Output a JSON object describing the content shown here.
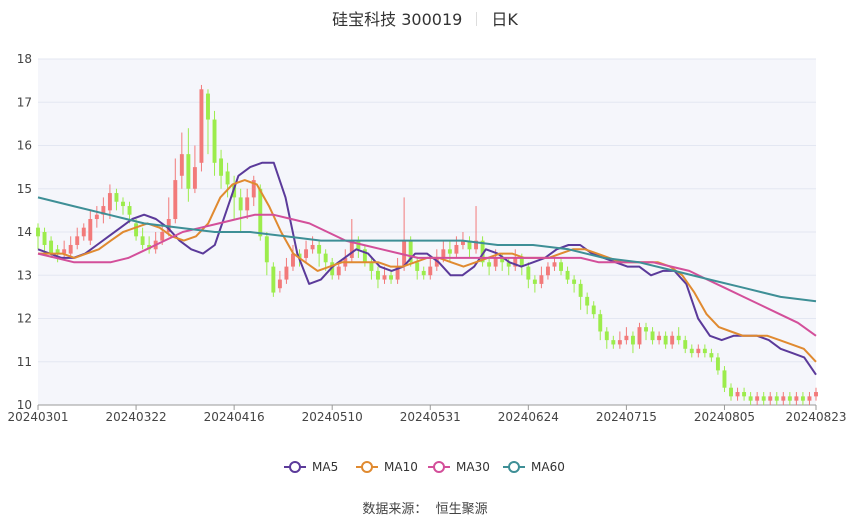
{
  "header": {
    "title": "硅宝科技 300019",
    "period": "日K"
  },
  "footer": {
    "source_label": "数据来源：",
    "source_name": "恒生聚源"
  },
  "colors": {
    "up": "#f27a7a",
    "down": "#9cec4c",
    "ma5": "#5b3a9a",
    "ma10": "#e08a30",
    "ma30": "#d34f9a",
    "ma60": "#3e8f96",
    "grid": "#e3e7f2",
    "plot_bg": "#f5f6fb"
  },
  "chart_data": {
    "type": "candlestick",
    "title": "硅宝科技 300019",
    "ylim": [
      10,
      18
    ],
    "yticks": [
      10,
      11,
      12,
      13,
      14,
      15,
      16,
      17,
      18
    ],
    "xticks": [
      "20240301",
      "20240322",
      "20240416",
      "20240510",
      "20240531",
      "20240624",
      "20240715",
      "20240805",
      "20240823"
    ],
    "xtick_index": [
      0,
      15,
      30,
      45,
      60,
      75,
      90,
      105,
      119
    ],
    "legend": [
      "MA5",
      "MA10",
      "MA30",
      "MA60"
    ],
    "n_days": 120,
    "candles": [
      [
        14.1,
        13.9,
        14.2,
        13.6
      ],
      [
        14.0,
        13.7,
        14.1,
        13.5
      ],
      [
        13.8,
        13.5,
        13.9,
        13.4
      ],
      [
        13.6,
        13.5,
        13.7,
        13.3
      ],
      [
        13.5,
        13.6,
        13.8,
        13.4
      ],
      [
        13.5,
        13.7,
        13.9,
        13.4
      ],
      [
        13.7,
        13.9,
        14.1,
        13.6
      ],
      [
        13.9,
        14.1,
        14.2,
        13.8
      ],
      [
        13.8,
        14.3,
        14.5,
        13.7
      ],
      [
        14.3,
        14.4,
        14.6,
        14.1
      ],
      [
        14.4,
        14.6,
        14.8,
        14.2
      ],
      [
        14.5,
        14.9,
        15.1,
        14.3
      ],
      [
        14.9,
        14.7,
        15.0,
        14.5
      ],
      [
        14.7,
        14.6,
        14.8,
        14.4
      ],
      [
        14.6,
        14.4,
        14.7,
        14.2
      ],
      [
        14.2,
        13.9,
        14.3,
        13.8
      ],
      [
        13.9,
        13.7,
        14.1,
        13.6
      ],
      [
        13.7,
        13.6,
        13.9,
        13.5
      ],
      [
        13.6,
        13.8,
        14.0,
        13.5
      ],
      [
        13.8,
        14.0,
        14.2,
        13.7
      ],
      [
        14.0,
        14.3,
        14.8,
        13.9
      ],
      [
        14.3,
        15.2,
        15.7,
        14.2
      ],
      [
        15.3,
        15.8,
        16.3,
        15.0
      ],
      [
        15.8,
        15.0,
        16.4,
        14.7
      ],
      [
        15.0,
        15.5,
        16.0,
        14.9
      ],
      [
        15.6,
        17.3,
        17.4,
        15.4
      ],
      [
        17.2,
        16.6,
        17.3,
        15.8
      ],
      [
        16.6,
        15.6,
        16.8,
        15.3
      ],
      [
        15.7,
        15.3,
        15.9,
        15.0
      ],
      [
        15.4,
        15.1,
        15.6,
        14.8
      ],
      [
        15.1,
        14.8,
        15.3,
        14.3
      ],
      [
        14.8,
        14.5,
        15.0,
        14.0
      ],
      [
        14.5,
        14.8,
        15.0,
        14.3
      ],
      [
        14.8,
        15.2,
        15.3,
        14.6
      ],
      [
        15.0,
        13.9,
        15.1,
        13.8
      ],
      [
        13.9,
        13.3,
        14.0,
        13.0
      ],
      [
        13.2,
        12.6,
        13.3,
        12.5
      ],
      [
        12.7,
        12.9,
        13.1,
        12.6
      ],
      [
        12.9,
        13.2,
        13.4,
        12.8
      ],
      [
        13.2,
        13.5,
        13.7,
        13.1
      ],
      [
        13.5,
        13.4,
        13.6,
        13.2
      ],
      [
        13.4,
        13.6,
        13.8,
        13.3
      ],
      [
        13.6,
        13.7,
        13.9,
        13.5
      ],
      [
        13.7,
        13.5,
        13.8,
        13.2
      ],
      [
        13.5,
        13.3,
        13.6,
        13.1
      ],
      [
        13.3,
        13.0,
        13.4,
        12.9
      ],
      [
        13.0,
        13.2,
        13.3,
        12.9
      ],
      [
        13.2,
        13.4,
        13.6,
        13.1
      ],
      [
        13.4,
        13.8,
        14.3,
        13.3
      ],
      [
        13.8,
        13.6,
        13.9,
        13.4
      ],
      [
        13.6,
        13.3,
        13.7,
        13.2
      ],
      [
        13.3,
        13.1,
        13.4,
        12.9
      ],
      [
        13.1,
        12.9,
        13.2,
        12.7
      ],
      [
        12.9,
        13.0,
        13.2,
        12.8
      ],
      [
        13.0,
        12.9,
        13.1,
        12.8
      ],
      [
        12.9,
        13.2,
        13.4,
        12.8
      ],
      [
        13.2,
        13.8,
        14.8,
        13.1
      ],
      [
        13.8,
        13.3,
        13.9,
        13.2
      ],
      [
        13.3,
        13.1,
        13.4,
        12.9
      ],
      [
        13.1,
        13.0,
        13.2,
        12.9
      ],
      [
        13.0,
        13.2,
        13.4,
        12.9
      ],
      [
        13.2,
        13.4,
        13.6,
        13.1
      ],
      [
        13.4,
        13.6,
        13.8,
        13.3
      ],
      [
        13.6,
        13.5,
        13.8,
        13.3
      ],
      [
        13.5,
        13.7,
        13.9,
        13.4
      ],
      [
        13.7,
        13.8,
        14.0,
        13.6
      ],
      [
        13.8,
        13.6,
        13.9,
        13.4
      ],
      [
        13.6,
        13.8,
        14.6,
        13.5
      ],
      [
        13.8,
        13.3,
        13.9,
        13.2
      ],
      [
        13.3,
        13.2,
        13.4,
        13.0
      ],
      [
        13.2,
        13.4,
        13.6,
        13.1
      ],
      [
        13.4,
        13.3,
        13.5,
        13.1
      ],
      [
        13.3,
        13.2,
        13.4,
        13.0
      ],
      [
        13.2,
        13.4,
        13.6,
        13.1
      ],
      [
        13.4,
        13.2,
        13.5,
        13.0
      ],
      [
        13.2,
        12.9,
        13.3,
        12.7
      ],
      [
        12.9,
        12.8,
        13.0,
        12.6
      ],
      [
        12.8,
        13.0,
        13.2,
        12.7
      ],
      [
        13.0,
        13.2,
        13.3,
        12.9
      ],
      [
        13.2,
        13.3,
        13.4,
        13.1
      ],
      [
        13.3,
        13.1,
        13.4,
        13.0
      ],
      [
        13.1,
        12.9,
        13.2,
        12.8
      ],
      [
        12.9,
        12.8,
        13.0,
        12.6
      ],
      [
        12.8,
        12.5,
        12.9,
        12.2
      ],
      [
        12.5,
        12.3,
        12.6,
        12.1
      ],
      [
        12.3,
        12.1,
        12.4,
        12.0
      ],
      [
        12.1,
        11.7,
        12.2,
        11.5
      ],
      [
        11.7,
        11.5,
        11.8,
        11.3
      ],
      [
        11.5,
        11.4,
        11.6,
        11.3
      ],
      [
        11.4,
        11.5,
        11.7,
        11.3
      ],
      [
        11.5,
        11.6,
        11.8,
        11.4
      ],
      [
        11.6,
        11.4,
        11.7,
        11.2
      ],
      [
        11.4,
        11.8,
        11.9,
        11.3
      ],
      [
        11.8,
        11.7,
        11.9,
        11.5
      ],
      [
        11.7,
        11.5,
        11.8,
        11.4
      ],
      [
        11.5,
        11.6,
        11.7,
        11.4
      ],
      [
        11.6,
        11.4,
        11.7,
        11.3
      ],
      [
        11.4,
        11.6,
        11.7,
        11.3
      ],
      [
        11.6,
        11.5,
        11.8,
        11.4
      ],
      [
        11.5,
        11.3,
        11.6,
        11.2
      ],
      [
        11.3,
        11.2,
        11.4,
        11.1
      ],
      [
        11.2,
        11.3,
        11.4,
        11.1
      ],
      [
        11.3,
        11.2,
        11.4,
        11.1
      ],
      [
        11.2,
        11.1,
        11.3,
        11.0
      ],
      [
        11.1,
        10.8,
        11.2,
        10.7
      ],
      [
        10.8,
        10.4,
        10.9,
        10.3
      ],
      [
        10.4,
        10.2,
        10.5,
        10.1
      ],
      [
        10.2,
        10.3,
        10.4,
        10.1
      ],
      [
        10.3,
        10.2,
        10.4,
        10.1
      ],
      [
        10.2,
        10.1,
        10.3,
        10.0
      ],
      [
        10.1,
        10.2,
        10.3,
        10.0
      ],
      [
        10.2,
        10.1,
        10.3,
        10.0
      ],
      [
        10.1,
        10.2,
        10.3,
        10.0
      ],
      [
        10.2,
        10.1,
        10.3,
        10.0
      ],
      [
        10.1,
        10.2,
        10.3,
        10.0
      ],
      [
        10.2,
        10.1,
        10.3,
        10.0
      ],
      [
        10.1,
        10.2,
        10.3,
        10.0
      ],
      [
        10.2,
        10.1,
        10.3,
        10.0
      ],
      [
        10.1,
        10.2,
        10.3,
        10.0
      ],
      [
        10.2,
        10.3,
        10.4,
        10.1
      ]
    ],
    "ma": {
      "MA5": [
        13.6,
        13.5,
        13.4,
        13.4,
        13.5,
        13.7,
        13.9,
        14.1,
        14.3,
        14.4,
        14.3,
        14.1,
        13.8,
        13.6,
        13.5,
        13.7,
        14.5,
        15.3,
        15.5,
        15.6,
        15.6,
        14.8,
        13.5,
        12.8,
        12.9,
        13.2,
        13.4,
        13.6,
        13.5,
        13.2,
        13.1,
        13.2,
        13.5,
        13.5,
        13.3,
        13.0,
        13.0,
        13.2,
        13.6,
        13.5,
        13.3,
        13.2,
        13.3,
        13.4,
        13.6,
        13.7,
        13.7,
        13.5,
        13.4,
        13.3,
        13.2,
        13.2,
        13.0,
        13.1,
        13.1,
        12.8,
        12.0,
        11.6,
        11.5,
        11.6,
        11.6,
        11.6,
        11.5,
        11.3,
        11.2,
        11.1,
        10.7
      ],
      "MA10": [
        13.5,
        13.5,
        13.5,
        13.4,
        13.5,
        13.6,
        13.8,
        14.0,
        14.1,
        14.2,
        14.1,
        13.9,
        13.8,
        13.9,
        14.2,
        14.8,
        15.1,
        15.2,
        15.1,
        14.6,
        14.0,
        13.5,
        13.3,
        13.1,
        13.2,
        13.3,
        13.3,
        13.3,
        13.3,
        13.2,
        13.2,
        13.3,
        13.4,
        13.4,
        13.3,
        13.2,
        13.3,
        13.4,
        13.5,
        13.5,
        13.4,
        13.4,
        13.4,
        13.5,
        13.6,
        13.6,
        13.5,
        13.4,
        13.3,
        13.3,
        13.3,
        13.3,
        13.2,
        13.0,
        12.6,
        12.1,
        11.8,
        11.7,
        11.6,
        11.6,
        11.6,
        11.5,
        11.4,
        11.3,
        11.0
      ],
      "MA30": [
        13.5,
        13.4,
        13.3,
        13.3,
        13.3,
        13.4,
        13.6,
        13.8,
        14.0,
        14.1,
        14.2,
        14.3,
        14.4,
        14.4,
        14.3,
        14.2,
        14.0,
        13.8,
        13.7,
        13.6,
        13.5,
        13.4,
        13.4,
        13.4,
        13.4,
        13.4,
        13.4,
        13.4,
        13.4,
        13.4,
        13.4,
        13.3,
        13.3,
        13.3,
        13.3,
        13.2,
        13.1,
        12.9,
        12.7,
        12.5,
        12.3,
        12.1,
        11.9,
        11.6
      ],
      "MA60": [
        14.8,
        14.6,
        14.4,
        14.2,
        14.1,
        14.0,
        14.0,
        13.9,
        13.8,
        13.8,
        13.8,
        13.8,
        13.8,
        13.7,
        13.7,
        13.6,
        13.4,
        13.3,
        13.1,
        12.9,
        12.7,
        12.5,
        12.4
      ]
    }
  }
}
